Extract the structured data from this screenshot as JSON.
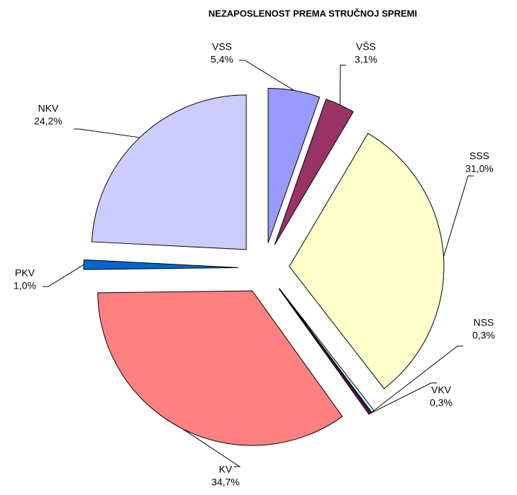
{
  "chart_data": {
    "type": "pie",
    "title": "NEZAPOSLENOST PREMA STRUČNOJ SPREMI",
    "categories": [
      "VSS",
      "VŠS",
      "SSS",
      "NSS",
      "VKV",
      "KV",
      "PKV",
      "NKV"
    ],
    "values": [
      5.4,
      3.1,
      31.0,
      0.3,
      0.3,
      34.7,
      1.0,
      24.2
    ],
    "value_labels": [
      "5,4%",
      "3,1%",
      "31,0%",
      "0,3%",
      "0,3%",
      "34,7%",
      "1,0%",
      "24,2%"
    ],
    "colors": [
      "#9999ff",
      "#993366",
      "#ffffcc",
      "#ccffff",
      "#660066",
      "#ff8080",
      "#0066cc",
      "#ccccff"
    ]
  }
}
